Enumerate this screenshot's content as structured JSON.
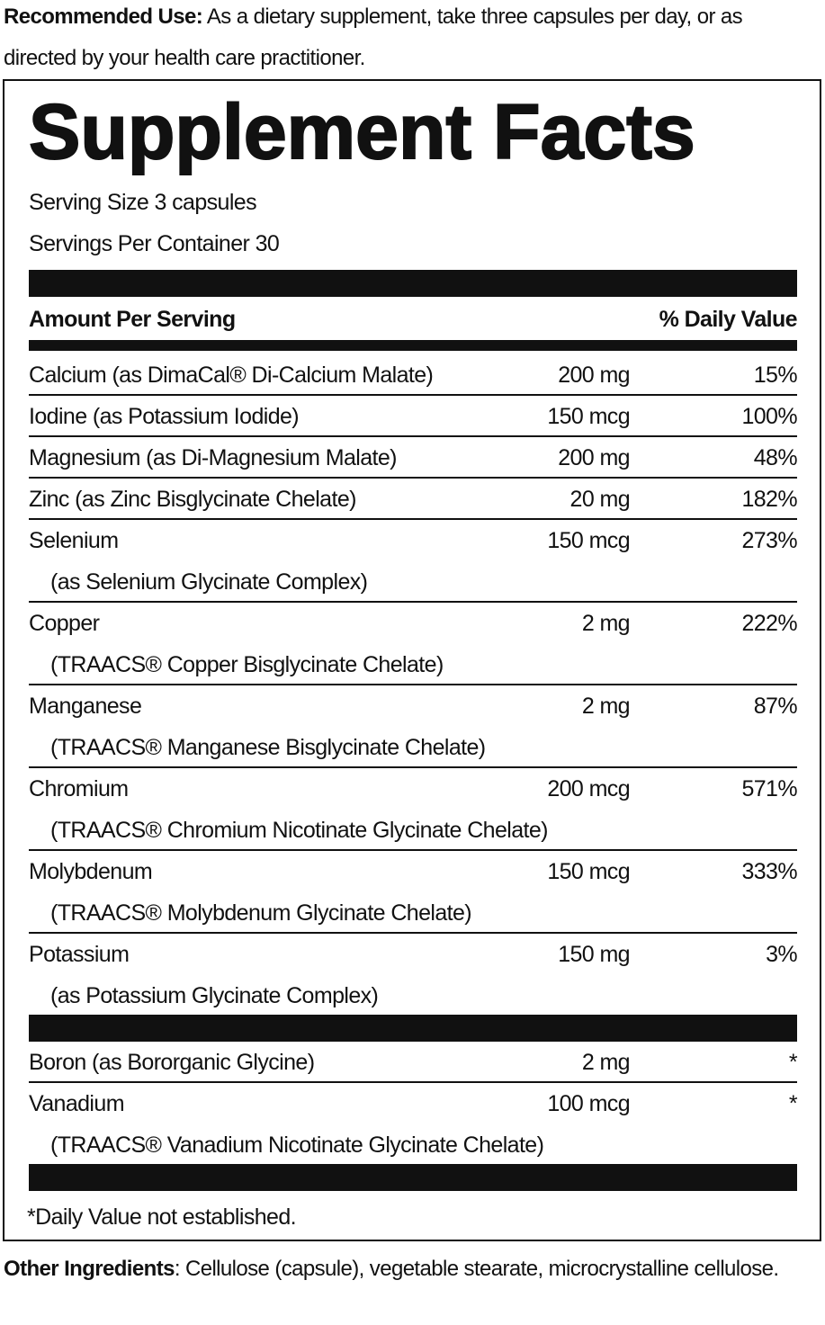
{
  "recommended_use": {
    "label": "Recommended Use:",
    "text": "As a dietary supplement, take three capsules per day, or as directed by your health care practitioner."
  },
  "facts": {
    "title": "Supplement Facts",
    "serving_size": "Serving Size 3 capsules",
    "servings_per_container": "Servings Per Container 30",
    "header": {
      "amount": "Amount Per Serving",
      "daily_value": "% Daily Value"
    },
    "nutrients": [
      {
        "name": "Calcium (as DimaCal® Di-Calcium Malate)",
        "amount": "200 mg",
        "dv": "15%"
      },
      {
        "name": "Iodine (as Potassium Iodide)",
        "amount": "150 mcg",
        "dv": "100%"
      },
      {
        "name": "Magnesium (as Di-Magnesium Malate)",
        "amount": "200 mg",
        "dv": "48%"
      },
      {
        "name": "Zinc (as Zinc Bisglycinate Chelate)",
        "amount": "20 mg",
        "dv": "182%"
      },
      {
        "name": "Selenium",
        "detail": "(as Selenium Glycinate Complex)",
        "amount": "150 mcg",
        "dv": "273%"
      },
      {
        "name": "Copper",
        "detail": "(TRAACS® Copper Bisglycinate Chelate)",
        "amount": "2 mg",
        "dv": "222%"
      },
      {
        "name": "Manganese",
        "detail": "(TRAACS® Manganese Bisglycinate Chelate)",
        "amount": "2 mg",
        "dv": "87%"
      },
      {
        "name": "Chromium",
        "detail": "(TRAACS® Chromium Nicotinate Glycinate Chelate)",
        "amount": "200 mcg",
        "dv": "571%"
      },
      {
        "name": "Molybdenum",
        "detail": "(TRAACS® Molybdenum Glycinate Chelate)",
        "amount": "150 mcg",
        "dv": "333%"
      },
      {
        "name": "Potassium",
        "detail": "(as Potassium Glycinate Complex)",
        "amount": "150 mg",
        "dv": "3%"
      }
    ],
    "other_nutrients": [
      {
        "name": "Boron (as Bororganic Glycine)",
        "amount": "2 mg",
        "dv": "*"
      },
      {
        "name": "Vanadium",
        "detail": "(TRAACS® Vanadium Nicotinate Glycinate Chelate)",
        "amount": "100 mcg",
        "dv": "*"
      }
    ],
    "footnote": "*Daily Value not established."
  },
  "other_ingredients": {
    "label": "Other Ingredients",
    "text": ": Cellulose (capsule), vegetable stearate, microcrystalline cellulose."
  }
}
